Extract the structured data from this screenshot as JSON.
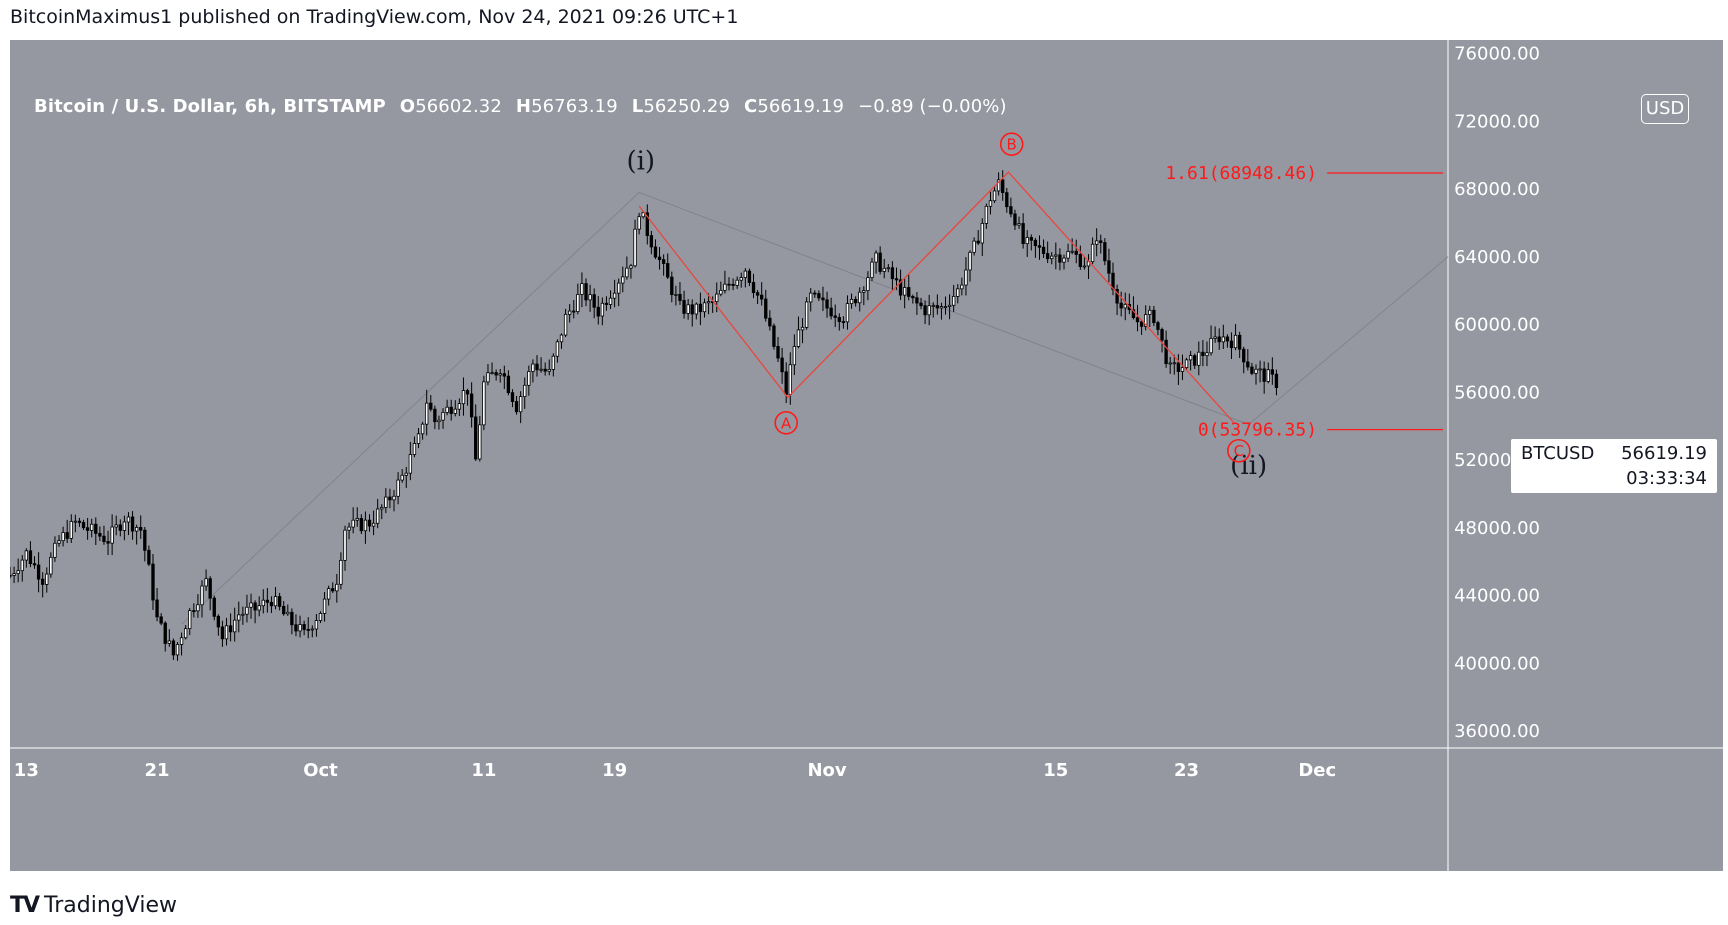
{
  "publish_line": "BitcoinMaximus1 published on TradingView.com, Nov 24, 2021 09:26 UTC+1",
  "legend": {
    "title": "Bitcoin / U.S. Dollar, 6h, BITSTAMP",
    "o_label": "O",
    "o_value": "56602.32",
    "h_label": "H",
    "h_value": "56763.19",
    "l_label": "L",
    "l_value": "56250.29",
    "c_label": "C",
    "c_value": "56619.19",
    "change": "−0.89 (−0.00%)"
  },
  "currency": "USD",
  "price_tag": {
    "symbol": "BTCUSD",
    "last": "56619.19",
    "countdown": "03:33:34"
  },
  "footer_logo": "TradingView",
  "colors": {
    "background": "#9598a1",
    "red": "#ff1a1a",
    "candle": "#000000",
    "text_light": "#ffffff"
  },
  "chart_data": {
    "type": "candlestick",
    "title": "Bitcoin / U.S. Dollar, 6h, BITSTAMP",
    "y_ticks": [
      "76000.00",
      "72000.00",
      "68000.00",
      "64000.00",
      "60000.00",
      "56000.00",
      "52000.00",
      "48000.00",
      "44000.00",
      "40000.00",
      "36000.00"
    ],
    "ylim": [
      35000,
      76800
    ],
    "x_ticks": [
      {
        "label": "13",
        "day": 0
      },
      {
        "label": "21",
        "day": 8
      },
      {
        "label": "Oct",
        "day": 18
      },
      {
        "label": "11",
        "day": 28
      },
      {
        "label": "19",
        "day": 36
      },
      {
        "label": "Nov",
        "day": 49
      },
      {
        "label": "15",
        "day": 63
      },
      {
        "label": "23",
        "day": 71
      },
      {
        "label": "Dec",
        "day": 79
      }
    ],
    "xlim": [
      -1,
      87
    ],
    "close_path": [
      [
        -1,
        45200
      ],
      [
        0,
        46500
      ],
      [
        1,
        45000
      ],
      [
        2,
        47200
      ],
      [
        3,
        48300
      ],
      [
        4,
        47800
      ],
      [
        5,
        47300
      ],
      [
        6,
        48600
      ],
      [
        7,
        47900
      ],
      [
        7.5,
        45500
      ],
      [
        8,
        42600
      ],
      [
        9,
        40500
      ],
      [
        10,
        43000
      ],
      [
        11,
        44800
      ],
      [
        12,
        41500
      ],
      [
        13,
        42900
      ],
      [
        14,
        43200
      ],
      [
        15,
        43800
      ],
      [
        16,
        42600
      ],
      [
        17,
        41700
      ],
      [
        18,
        43100
      ],
      [
        19,
        45000
      ],
      [
        19.5,
        48000
      ],
      [
        20,
        48100
      ],
      [
        21,
        48300
      ],
      [
        22,
        49400
      ],
      [
        23,
        51000
      ],
      [
        24,
        53200
      ],
      [
        24.5,
        55500
      ],
      [
        25,
        54300
      ],
      [
        26,
        55200
      ],
      [
        27,
        56200
      ],
      [
        27.5,
        52000
      ],
      [
        28,
        56500
      ],
      [
        29,
        57500
      ],
      [
        30,
        55200
      ],
      [
        31,
        57700
      ],
      [
        32,
        57100
      ],
      [
        33,
        60400
      ],
      [
        34,
        62000
      ],
      [
        35,
        60800
      ],
      [
        36,
        62300
      ],
      [
        37,
        63800
      ],
      [
        37.5,
        66800
      ],
      [
        38,
        65500
      ],
      [
        39,
        63200
      ],
      [
        40,
        61000
      ],
      [
        41,
        60800
      ],
      [
        42,
        61300
      ],
      [
        43,
        62400
      ],
      [
        44,
        63300
      ],
      [
        45,
        61200
      ],
      [
        46,
        57900
      ],
      [
        46.5,
        56000
      ],
      [
        47,
        58800
      ],
      [
        48,
        61600
      ],
      [
        49,
        61000
      ],
      [
        50,
        60500
      ],
      [
        51,
        62000
      ],
      [
        52,
        63800
      ],
      [
        53,
        62700
      ],
      [
        54,
        61500
      ],
      [
        55,
        60900
      ],
      [
        56,
        61000
      ],
      [
        57,
        62000
      ],
      [
        58,
        64500
      ],
      [
        59,
        67500
      ],
      [
        59.5,
        68300
      ],
      [
        60,
        67200
      ],
      [
        60.5,
        66300
      ],
      [
        61,
        64800
      ],
      [
        62,
        64400
      ],
      [
        63,
        64100
      ],
      [
        64,
        64200
      ],
      [
        65,
        63500
      ],
      [
        65.5,
        65300
      ],
      [
        66,
        63800
      ],
      [
        67,
        61000
      ],
      [
        68,
        60200
      ],
      [
        69,
        60500
      ],
      [
        70,
        57300
      ],
      [
        71,
        57600
      ],
      [
        72,
        58300
      ],
      [
        73,
        59300
      ],
      [
        74,
        59000
      ],
      [
        75,
        57300
      ],
      [
        76,
        56900
      ],
      [
        76.5,
        56600
      ]
    ],
    "wave_labels": [
      {
        "text": "(i)",
        "x": 37.6,
        "price": 69700,
        "color": "#131722"
      },
      {
        "text": "(ii)",
        "x": 74.8,
        "price": 51700,
        "color": "#131722"
      },
      {
        "text": "A",
        "x": 46.5,
        "price": 54200,
        "color": "#ff1a1a",
        "circled": true
      },
      {
        "text": "B",
        "x": 60.3,
        "price": 70650,
        "color": "#ff1a1a",
        "circled": true
      },
      {
        "text": "C",
        "x": 74.2,
        "price": 52550,
        "color": "#ff1a1a",
        "circled": true
      }
    ],
    "abc_lines": [
      [
        37.5,
        67000
      ],
      [
        46.6,
        55700
      ],
      [
        60.1,
        69000
      ],
      [
        73.9,
        54200
      ]
    ],
    "fib_levels": [
      {
        "label": "1.61(68948.46)",
        "price": 68948.46
      },
      {
        "label": "0(53796.35)",
        "price": 53796.35
      }
    ],
    "fib_line_x": [
      79.6,
      86.7
    ],
    "guide_lines": [
      [
        [
          9.5,
          42300
        ],
        [
          37.5,
          67800
        ],
        [
          74.8,
          54100
        ]
      ],
      [
        [
          74.8,
          54100
        ],
        [
          87,
          64000
        ]
      ]
    ]
  }
}
